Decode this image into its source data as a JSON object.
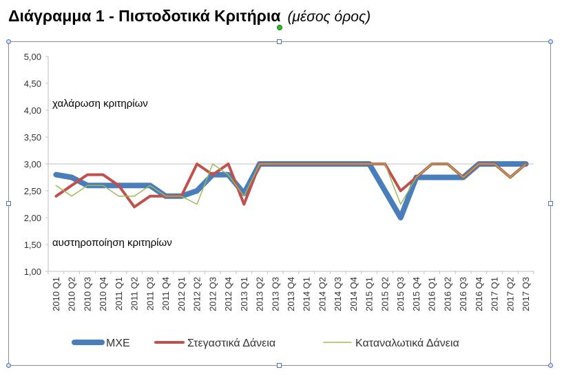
{
  "header": {
    "title": "Διάγραμμα 1 - Πιστοδοτικά Κριτήρια",
    "subtitle": "(μέσος όρος)"
  },
  "chart_data": {
    "type": "line",
    "title": "Διάγραμμα 1 - Πιστοδοτικά Κριτήρια",
    "subtitle": "(μέσος όρος)",
    "xlabel": "",
    "ylabel": "",
    "ylim": [
      1.0,
      5.0
    ],
    "yticks": [
      "1,00",
      "1,50",
      "2,00",
      "2,50",
      "3,00",
      "3,50",
      "4,00",
      "4,50",
      "5,00"
    ],
    "grid": false,
    "legend": "bottom",
    "annotations": {
      "upper": "χαλάρωση κριτηρίων",
      "lower": "αυστηροποίηση κριτηρίων"
    },
    "categories": [
      "2010 Q1",
      "2010 Q2",
      "2010 Q3",
      "2010 Q4",
      "2011 Q1",
      "2011 Q2",
      "2011 Q3",
      "2011 Q4",
      "2012 Q1",
      "2012 Q2",
      "2012 Q3",
      "2012 Q4",
      "2013 Q1",
      "2013 Q2",
      "2013 Q3",
      "2013 Q4",
      "2014 Q1",
      "2014 Q2",
      "2014 Q3",
      "2014 Q4",
      "2015 Q1",
      "2015 Q2",
      "2015 Q3",
      "2015 Q4",
      "2016 Q1",
      "2016 Q2",
      "2016 Q3",
      "2016 Q4",
      "2017 Q1",
      "2017 Q2",
      "2017 Q3"
    ],
    "series": [
      {
        "name": "ΜΧΕ",
        "color": "#4a7ebb",
        "width": 8,
        "values": [
          2.8,
          2.75,
          2.6,
          2.6,
          2.6,
          2.6,
          2.6,
          2.4,
          2.4,
          2.5,
          2.8,
          2.8,
          2.45,
          3.0,
          3.0,
          3.0,
          3.0,
          3.0,
          3.0,
          3.0,
          3.0,
          2.5,
          2.0,
          2.75,
          2.75,
          2.75,
          2.75,
          3.0,
          3.0,
          3.0,
          3.0
        ]
      },
      {
        "name": "Στεγαστικά Δάνεια",
        "color": "#c0504d",
        "width": 4,
        "values": [
          2.4,
          2.6,
          2.8,
          2.8,
          2.6,
          2.2,
          2.4,
          2.4,
          2.4,
          3.0,
          2.8,
          3.0,
          2.25,
          3.0,
          3.0,
          3.0,
          3.0,
          3.0,
          3.0,
          3.0,
          3.0,
          3.0,
          2.5,
          2.75,
          3.0,
          3.0,
          2.75,
          3.0,
          3.0,
          2.75,
          3.0
        ]
      },
      {
        "name": "Καταναλωτικά Δάνεια",
        "color": "#9bbb59",
        "width": 1.5,
        "values": [
          2.6,
          2.4,
          2.6,
          2.6,
          2.4,
          2.4,
          2.6,
          2.4,
          2.4,
          2.25,
          3.0,
          2.8,
          2.4,
          3.0,
          3.0,
          3.0,
          3.0,
          3.0,
          3.0,
          3.0,
          3.0,
          3.0,
          2.25,
          2.75,
          3.0,
          3.0,
          2.75,
          3.0,
          3.0,
          2.75,
          3.0
        ]
      }
    ]
  }
}
